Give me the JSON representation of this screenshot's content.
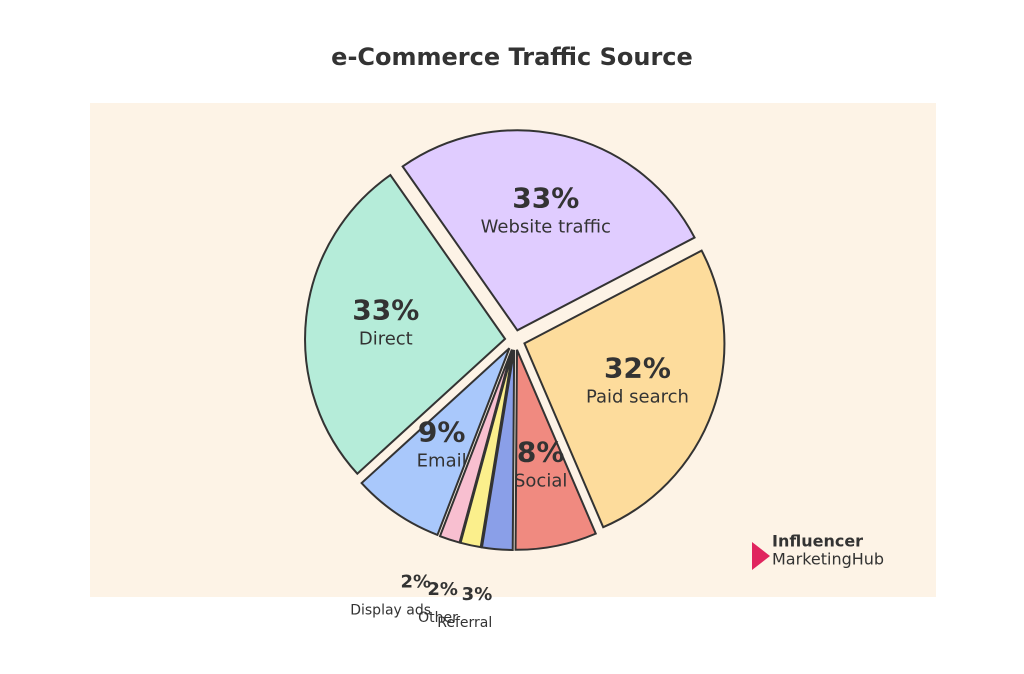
{
  "chart_data": {
    "type": "pie",
    "title": "e-Commerce Traffic Source",
    "categories": [
      "Website traffic",
      "Paid search",
      "Social",
      "Referral",
      "Other",
      "Display ads",
      "Email",
      "Direct"
    ],
    "values": [
      33,
      32,
      8,
      3,
      2,
      2,
      9,
      33
    ],
    "value_labels": [
      "33%",
      "32%",
      "8%",
      "3%",
      "2%",
      "2%",
      "9%",
      "33%"
    ],
    "colors": [
      "#e0ccff",
      "#fddc9c",
      "#f08a80",
      "#8a9fe8",
      "#fbef8c",
      "#f8bfd0",
      "#a9c8fb",
      "#b5ecd9"
    ],
    "logo": [
      "Influencer",
      "MarketingHub"
    ]
  }
}
